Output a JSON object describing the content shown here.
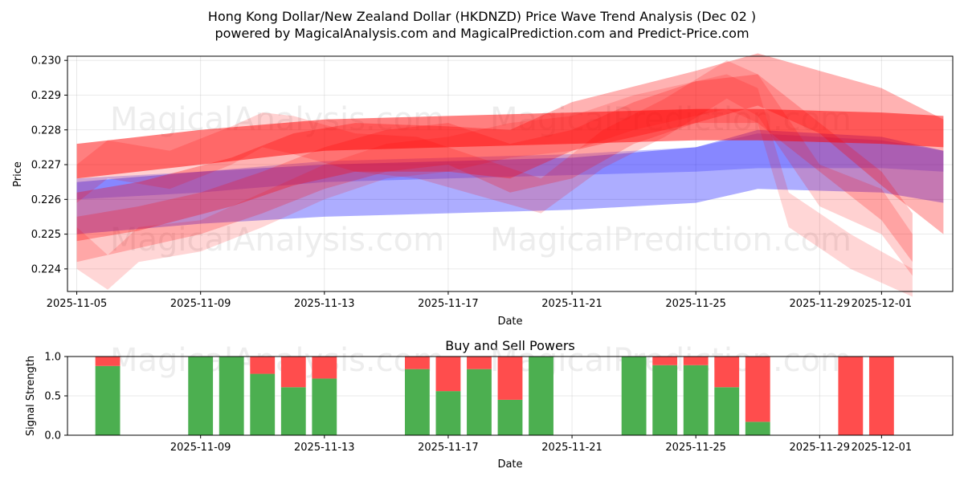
{
  "title_line1": "Hong Kong Dollar/New Zealand Dollar (HKDNZD) Price Wave Trend Analysis (Dec 02 )",
  "title_line2": "powered by MagicalAnalysis.com and MagicalPrediction.com and Predict-Price.com",
  "watermarks": [
    "MagicalAnalysis.com",
    "MagicalPrediction.com"
  ],
  "colors": {
    "red": "#ff0000",
    "blue": "#0000ff",
    "buy": "#4caf50",
    "sell": "#ff4d4d"
  },
  "chart_data": [
    {
      "type": "area",
      "title": "",
      "xlabel": "Date",
      "ylabel": "Price",
      "xlim": [
        -0.3,
        28.3
      ],
      "ylim": [
        0.22335,
        0.23012
      ],
      "xticks": [
        {
          "pos": 0,
          "label": "2025-11-05"
        },
        {
          "pos": 4,
          "label": "2025-11-09"
        },
        {
          "pos": 8,
          "label": "2025-11-13"
        },
        {
          "pos": 12,
          "label": "2025-11-17"
        },
        {
          "pos": 16,
          "label": "2025-11-21"
        },
        {
          "pos": 20,
          "label": "2025-11-25"
        },
        {
          "pos": 24,
          "label": "2025-11-29"
        },
        {
          "pos": 26,
          "label": "2025-12-01"
        }
      ],
      "yticks": [
        0.224,
        0.225,
        0.226,
        0.227,
        0.228,
        0.229,
        0.23
      ],
      "grid": true,
      "blue_bands": [
        {
          "x": [
            0,
            4,
            8,
            12,
            16,
            20,
            22,
            26,
            28
          ],
          "upper": [
            0.2265,
            0.2268,
            0.227,
            0.2271,
            0.2272,
            0.2275,
            0.228,
            0.2278,
            0.2274
          ],
          "lower": [
            0.225,
            0.2253,
            0.2255,
            0.2256,
            0.2257,
            0.2259,
            0.2263,
            0.2262,
            0.2259
          ]
        },
        {
          "x": [
            0,
            4,
            8,
            12,
            16,
            20,
            22,
            26,
            28
          ],
          "upper": [
            0.2266,
            0.2268,
            0.2271,
            0.2272,
            0.2273,
            0.2275,
            0.2279,
            0.2277,
            0.2274
          ],
          "lower": [
            0.226,
            0.2262,
            0.2265,
            0.2266,
            0.2267,
            0.2268,
            0.2269,
            0.2269,
            0.2268
          ]
        }
      ],
      "red_bands": [
        {
          "x": [
            0,
            4,
            8,
            12,
            16,
            20,
            22,
            26,
            28
          ],
          "upper": [
            0.2276,
            0.228,
            0.2283,
            0.2284,
            0.2285,
            0.2286,
            0.2286,
            0.2285,
            0.2284
          ],
          "lower": [
            0.2266,
            0.227,
            0.2274,
            0.2275,
            0.2276,
            0.2277,
            0.2277,
            0.2276,
            0.2275
          ],
          "opacity": 0.5
        },
        {
          "x": [
            0,
            2,
            5,
            7,
            9,
            12,
            14,
            16,
            20,
            22,
            24,
            26,
            28
          ],
          "upper": [
            0.2262,
            0.2265,
            0.2272,
            0.2279,
            0.2282,
            0.2281,
            0.228,
            0.2288,
            0.2297,
            0.2302,
            0.2297,
            0.2292,
            0.2283
          ],
          "lower": [
            0.2248,
            0.2251,
            0.2258,
            0.2264,
            0.2268,
            0.2268,
            0.2266,
            0.2274,
            0.2282,
            0.2287,
            0.2279,
            0.2264,
            0.225
          ],
          "opacity": 0.3
        },
        {
          "x": [
            0,
            2,
            4,
            6,
            8,
            10,
            12,
            14,
            16,
            18,
            20,
            22,
            24,
            26,
            27
          ],
          "upper": [
            0.2255,
            0.2258,
            0.2262,
            0.2268,
            0.2275,
            0.228,
            0.2282,
            0.2276,
            0.228,
            0.2288,
            0.2294,
            0.2296,
            0.2282,
            0.2268,
            0.2256
          ],
          "lower": [
            0.2242,
            0.2246,
            0.225,
            0.2256,
            0.2263,
            0.2268,
            0.227,
            0.2262,
            0.2266,
            0.2276,
            0.2282,
            0.2282,
            0.2268,
            0.2254,
            0.2242
          ],
          "opacity": 0.22
        },
        {
          "x": [
            0,
            1,
            3,
            5,
            6,
            7,
            9,
            11,
            13,
            15,
            17,
            19,
            21,
            22,
            24,
            26,
            27
          ],
          "upper": [
            0.227,
            0.2277,
            0.2274,
            0.2281,
            0.2285,
            0.2284,
            0.2279,
            0.2278,
            0.2272,
            0.2266,
            0.228,
            0.2289,
            0.23,
            0.2296,
            0.227,
            0.2263,
            0.225
          ],
          "lower": [
            0.2259,
            0.2266,
            0.2263,
            0.227,
            0.2275,
            0.2273,
            0.2268,
            0.2266,
            0.2261,
            0.2256,
            0.2269,
            0.2278,
            0.2289,
            0.2284,
            0.2258,
            0.225,
            0.2238
          ],
          "opacity": 0.18
        },
        {
          "x": [
            0,
            1,
            2,
            4,
            6,
            8,
            10,
            12,
            14,
            16,
            18,
            20,
            21,
            22,
            23,
            25,
            27
          ],
          "upper": [
            0.2252,
            0.2244,
            0.2252,
            0.2254,
            0.2262,
            0.227,
            0.2276,
            0.2278,
            0.2282,
            0.2284,
            0.229,
            0.2294,
            0.2296,
            0.2292,
            0.2262,
            0.225,
            0.224
          ],
          "lower": [
            0.224,
            0.2234,
            0.2242,
            0.2245,
            0.2252,
            0.226,
            0.2266,
            0.2268,
            0.2272,
            0.2274,
            0.228,
            0.2284,
            0.2286,
            0.2282,
            0.2252,
            0.224,
            0.2232
          ],
          "opacity": 0.16
        }
      ]
    },
    {
      "type": "bar",
      "title": "Buy and Sell Powers",
      "xlabel": "Date",
      "ylabel": "Signal Strength",
      "xlim": [
        -0.3,
        28.3
      ],
      "ylim": [
        0,
        1
      ],
      "yticks": [
        0.0,
        0.5,
        1.0
      ],
      "xticks": [
        {
          "pos": 4,
          "label": "2025-11-09"
        },
        {
          "pos": 8,
          "label": "2025-11-13"
        },
        {
          "pos": 12,
          "label": "2025-11-17"
        },
        {
          "pos": 16,
          "label": "2025-11-21"
        },
        {
          "pos": 20,
          "label": "2025-11-25"
        },
        {
          "pos": 24,
          "label": "2025-11-29"
        },
        {
          "pos": 26,
          "label": "2025-12-01"
        }
      ],
      "series": [
        {
          "name": "Buy",
          "color": "#4caf50"
        },
        {
          "name": "Sell",
          "color": "#ff4d4d"
        }
      ],
      "bars": [
        {
          "x": 1,
          "buy": 0.88,
          "sell": 0.12
        },
        {
          "x": 4,
          "buy": 1.0,
          "sell": 0.0
        },
        {
          "x": 5,
          "buy": 1.0,
          "sell": 0.0
        },
        {
          "x": 6,
          "buy": 0.78,
          "sell": 0.22
        },
        {
          "x": 7,
          "buy": 0.61,
          "sell": 0.39
        },
        {
          "x": 8,
          "buy": 0.72,
          "sell": 0.28
        },
        {
          "x": 11,
          "buy": 0.84,
          "sell": 0.16
        },
        {
          "x": 12,
          "buy": 0.56,
          "sell": 0.44
        },
        {
          "x": 13,
          "buy": 0.84,
          "sell": 0.16
        },
        {
          "x": 14,
          "buy": 0.45,
          "sell": 0.55
        },
        {
          "x": 15,
          "buy": 1.0,
          "sell": 0.0
        },
        {
          "x": 18,
          "buy": 1.0,
          "sell": 0.0
        },
        {
          "x": 19,
          "buy": 0.89,
          "sell": 0.11
        },
        {
          "x": 20,
          "buy": 0.89,
          "sell": 0.11
        },
        {
          "x": 21,
          "buy": 0.61,
          "sell": 0.39
        },
        {
          "x": 22,
          "buy": 0.17,
          "sell": 0.83
        },
        {
          "x": 25,
          "buy": 0.0,
          "sell": 1.0
        },
        {
          "x": 26,
          "buy": 0.0,
          "sell": 1.0
        }
      ]
    }
  ]
}
